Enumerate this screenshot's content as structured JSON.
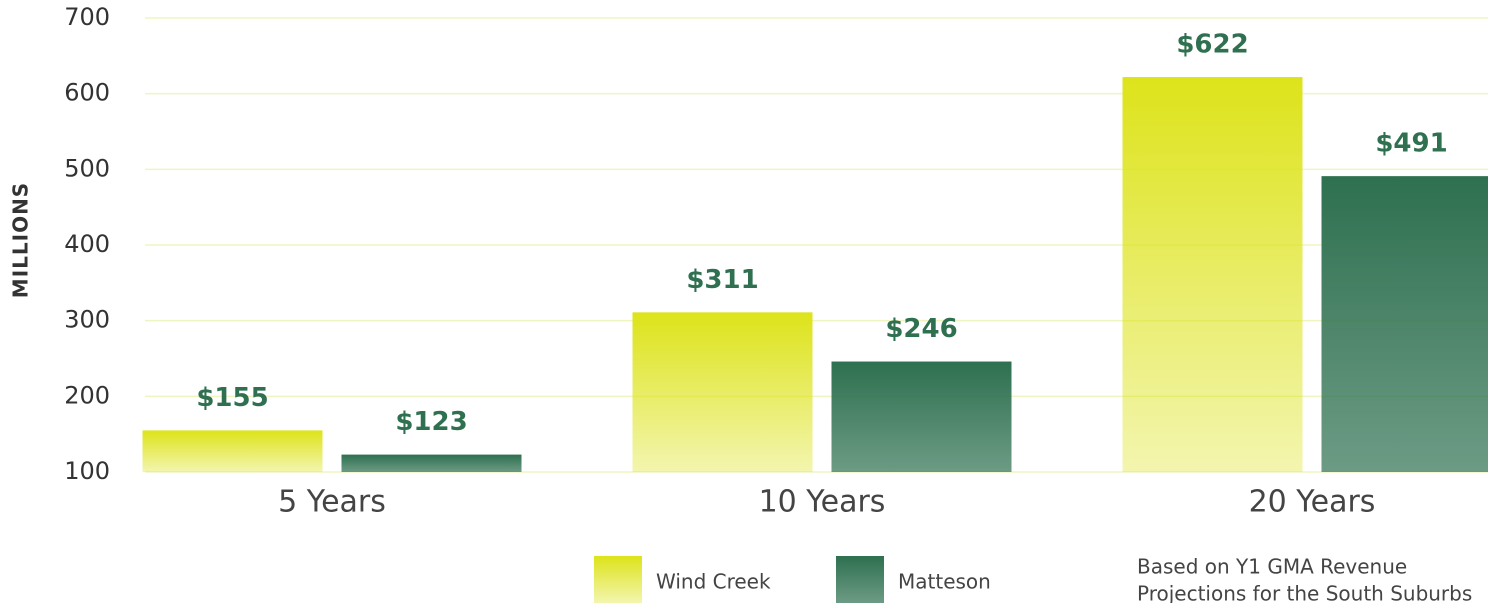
{
  "chart_data": {
    "type": "bar",
    "y_label": "MILLIONS",
    "categories": [
      "5 Years",
      "10 Years",
      "20 Years"
    ],
    "series": [
      {
        "name": "Wind Creek",
        "color": "#dde31a",
        "values": [
          155,
          311,
          622
        ],
        "value_labels": [
          "$155",
          "$311",
          "$622"
        ]
      },
      {
        "name": "Matteson",
        "color": "#2e7050",
        "values": [
          123,
          246,
          491
        ],
        "value_labels": [
          "$123",
          "$246",
          "$491"
        ]
      }
    ],
    "ylim": [
      100,
      700
    ],
    "yticks": [
      100,
      200,
      300,
      400,
      500,
      600,
      700
    ],
    "grid": true,
    "note": [
      "Based on Y1 GMA Revenue",
      "Projections for the South Suburbs"
    ]
  }
}
